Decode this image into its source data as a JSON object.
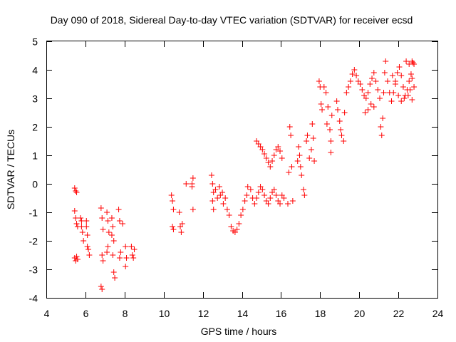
{
  "chart_data": {
    "type": "scatter",
    "title": "Day 090 of 2018, Sidereal Day-to-day VTEC variation (SDTVAR) for receiver ecsd",
    "xlabel": "GPS time / hours",
    "ylabel": "SDTVAR / TECUs",
    "xlim": [
      4,
      24
    ],
    "ylim": [
      -4,
      5
    ],
    "xticks": [
      "4",
      "6",
      "8",
      "10",
      "12",
      "14",
      "16",
      "18",
      "20",
      "22",
      "24"
    ],
    "yticks": [
      "-4",
      "-3",
      "-2",
      "-1",
      "0",
      "1",
      "2",
      "3",
      "4",
      "5"
    ],
    "marker": "plus",
    "grid": false,
    "color": "#ff0000",
    "series": [
      {
        "points": [
          [
            5.45,
            -0.15
          ],
          [
            5.5,
            -0.25
          ],
          [
            5.55,
            -0.3
          ],
          [
            5.45,
            -0.95
          ],
          [
            5.5,
            -1.2
          ],
          [
            5.55,
            -1.4
          ],
          [
            5.6,
            -1.5
          ],
          [
            5.45,
            -2.6
          ],
          [
            5.5,
            -2.7
          ],
          [
            5.55,
            -2.55
          ],
          [
            5.6,
            -2.65
          ],
          [
            5.75,
            -1.2
          ],
          [
            5.8,
            -1.5
          ],
          [
            5.85,
            -1.7
          ],
          [
            5.9,
            -2.0
          ],
          [
            5.8,
            -1.3
          ],
          [
            6.05,
            -1.5
          ],
          [
            6.1,
            -1.8
          ],
          [
            6.15,
            -2.3
          ],
          [
            6.2,
            -2.5
          ],
          [
            6.1,
            -2.2
          ],
          [
            6.05,
            -1.3
          ],
          [
            6.8,
            -0.85
          ],
          [
            6.85,
            -1.2
          ],
          [
            6.9,
            -1.6
          ],
          [
            6.85,
            -2.5
          ],
          [
            6.9,
            -2.7
          ],
          [
            6.8,
            -3.6
          ],
          [
            6.85,
            -3.7
          ],
          [
            7.1,
            -1.0
          ],
          [
            7.15,
            -1.3
          ],
          [
            7.2,
            -1.7
          ],
          [
            7.1,
            -2.4
          ],
          [
            7.15,
            -2.2
          ],
          [
            7.35,
            -1.2
          ],
          [
            7.4,
            -1.5
          ],
          [
            7.45,
            -2.0
          ],
          [
            7.4,
            -2.5
          ],
          [
            7.45,
            -3.1
          ],
          [
            7.5,
            -3.3
          ],
          [
            7.35,
            -1.8
          ],
          [
            7.7,
            -0.9
          ],
          [
            7.75,
            -1.3
          ],
          [
            7.8,
            -2.4
          ],
          [
            7.75,
            -2.6
          ],
          [
            7.9,
            -1.4
          ],
          [
            8.05,
            -2.2
          ],
          [
            8.1,
            -2.6
          ],
          [
            8.05,
            -2.9
          ],
          [
            8.35,
            -2.2
          ],
          [
            8.4,
            -2.5
          ],
          [
            8.45,
            -2.6
          ],
          [
            8.5,
            -2.3
          ],
          [
            10.4,
            -0.4
          ],
          [
            10.45,
            -0.6
          ],
          [
            10.5,
            -0.9
          ],
          [
            10.45,
            -1.5
          ],
          [
            10.5,
            -1.6
          ],
          [
            10.8,
            -1.0
          ],
          [
            10.85,
            -1.5
          ],
          [
            10.9,
            -1.7
          ],
          [
            10.95,
            -1.4
          ],
          [
            11.15,
            0.0
          ],
          [
            11.5,
            -0.9
          ],
          [
            11.45,
            -0.1
          ],
          [
            11.5,
            0.2
          ],
          [
            11.45,
            0.0
          ],
          [
            12.45,
            0.3
          ],
          [
            12.5,
            0.0
          ],
          [
            12.55,
            -0.3
          ],
          [
            12.5,
            -0.6
          ],
          [
            12.55,
            -0.9
          ],
          [
            12.65,
            -0.2
          ],
          [
            12.75,
            -0.5
          ],
          [
            12.85,
            -0.1
          ],
          [
            12.9,
            -0.4
          ],
          [
            13.0,
            -0.3
          ],
          [
            13.05,
            -0.7
          ],
          [
            13.15,
            -0.5
          ],
          [
            13.25,
            -0.9
          ],
          [
            13.35,
            -1.1
          ],
          [
            13.45,
            -1.5
          ],
          [
            13.55,
            -1.65
          ],
          [
            13.65,
            -1.7
          ],
          [
            13.75,
            -1.6
          ],
          [
            13.85,
            -1.4
          ],
          [
            13.95,
            -1.1
          ],
          [
            14.05,
            -0.9
          ],
          [
            14.15,
            -0.6
          ],
          [
            14.25,
            -0.4
          ],
          [
            14.3,
            -0.1
          ],
          [
            14.45,
            -0.2
          ],
          [
            14.55,
            -0.5
          ],
          [
            14.65,
            -0.7
          ],
          [
            14.75,
            -0.5
          ],
          [
            14.85,
            -0.3
          ],
          [
            14.95,
            -0.1
          ],
          [
            15.05,
            -0.2
          ],
          [
            15.15,
            -0.4
          ],
          [
            15.25,
            -0.6
          ],
          [
            15.35,
            -0.7
          ],
          [
            15.45,
            -0.5
          ],
          [
            15.55,
            -0.3
          ],
          [
            15.65,
            -0.2
          ],
          [
            15.75,
            -0.4
          ],
          [
            15.85,
            -0.6
          ],
          [
            15.95,
            -0.7
          ],
          [
            16.05,
            -0.4
          ],
          [
            16.15,
            -0.5
          ],
          [
            14.75,
            1.5
          ],
          [
            14.85,
            1.4
          ],
          [
            14.95,
            1.3
          ],
          [
            15.05,
            1.2
          ],
          [
            15.15,
            1.05
          ],
          [
            15.25,
            0.9
          ],
          [
            15.35,
            0.75
          ],
          [
            15.45,
            0.6
          ],
          [
            15.55,
            0.8
          ],
          [
            15.65,
            1.0
          ],
          [
            15.75,
            1.2
          ],
          [
            15.85,
            1.3
          ],
          [
            15.95,
            1.15
          ],
          [
            16.05,
            0.9
          ],
          [
            16.35,
            -0.7
          ],
          [
            16.4,
            0.4
          ],
          [
            16.45,
            2.0
          ],
          [
            16.5,
            1.7
          ],
          [
            16.55,
            0.6
          ],
          [
            16.6,
            -0.6
          ],
          [
            16.85,
            0.8
          ],
          [
            16.9,
            1.3
          ],
          [
            16.95,
            1.0
          ],
          [
            17.0,
            0.6
          ],
          [
            17.05,
            0.3
          ],
          [
            17.15,
            -0.2
          ],
          [
            17.2,
            -0.4
          ],
          [
            17.3,
            1.5
          ],
          [
            17.35,
            1.7
          ],
          [
            17.45,
            0.9
          ],
          [
            17.55,
            1.2
          ],
          [
            17.6,
            2.1
          ],
          [
            17.65,
            1.6
          ],
          [
            17.7,
            0.8
          ],
          [
            17.95,
            3.6
          ],
          [
            18.0,
            3.4
          ],
          [
            18.05,
            2.8
          ],
          [
            18.1,
            2.6
          ],
          [
            18.2,
            3.4
          ],
          [
            18.3,
            3.2
          ],
          [
            18.35,
            2.1
          ],
          [
            18.4,
            2.7
          ],
          [
            18.5,
            1.9
          ],
          [
            18.55,
            1.5
          ],
          [
            18.6,
            2.4
          ],
          [
            18.55,
            1.1
          ],
          [
            18.85,
            2.9
          ],
          [
            18.9,
            2.6
          ],
          [
            19.0,
            2.2
          ],
          [
            19.05,
            1.9
          ],
          [
            19.1,
            1.7
          ],
          [
            19.2,
            1.5
          ],
          [
            19.25,
            2.5
          ],
          [
            19.35,
            3.2
          ],
          [
            19.45,
            3.4
          ],
          [
            19.55,
            3.6
          ],
          [
            19.65,
            3.85
          ],
          [
            19.75,
            4.0
          ],
          [
            19.85,
            3.8
          ],
          [
            19.95,
            3.6
          ],
          [
            20.05,
            3.5
          ],
          [
            20.15,
            3.3
          ],
          [
            20.25,
            3.1
          ],
          [
            20.35,
            3.0
          ],
          [
            20.45,
            3.2
          ],
          [
            20.55,
            3.5
          ],
          [
            20.65,
            3.7
          ],
          [
            20.75,
            3.9
          ],
          [
            20.85,
            3.6
          ],
          [
            20.95,
            3.3
          ],
          [
            20.3,
            2.5
          ],
          [
            20.45,
            2.6
          ],
          [
            20.6,
            2.8
          ],
          [
            20.75,
            2.7
          ],
          [
            21.05,
            3.0
          ],
          [
            21.1,
            2.0
          ],
          [
            21.15,
            1.7
          ],
          [
            21.2,
            2.3
          ],
          [
            21.25,
            3.2
          ],
          [
            21.3,
            3.9
          ],
          [
            21.35,
            4.3
          ],
          [
            21.45,
            3.6
          ],
          [
            21.55,
            3.2
          ],
          [
            21.65,
            2.9
          ],
          [
            21.75,
            3.2
          ],
          [
            21.85,
            3.6
          ],
          [
            21.95,
            3.9
          ],
          [
            22.05,
            4.1
          ],
          [
            22.15,
            3.8
          ],
          [
            22.25,
            3.4
          ],
          [
            22.35,
            3.1
          ],
          [
            22.45,
            3.3
          ],
          [
            22.55,
            3.6
          ],
          [
            22.65,
            3.85
          ],
          [
            22.75,
            4.25
          ],
          [
            21.7,
            3.8
          ],
          [
            21.85,
            3.5
          ],
          [
            22.0,
            3.1
          ],
          [
            22.15,
            2.9
          ],
          [
            22.3,
            3.0
          ],
          [
            22.5,
            3.1
          ],
          [
            22.7,
            2.95
          ],
          [
            22.4,
            4.3
          ],
          [
            22.55,
            4.2
          ],
          [
            22.7,
            4.3
          ],
          [
            22.8,
            4.2
          ],
          [
            22.8,
            3.4
          ],
          [
            22.7,
            3.7
          ],
          [
            22.6,
            3.3
          ]
        ]
      }
    ]
  }
}
